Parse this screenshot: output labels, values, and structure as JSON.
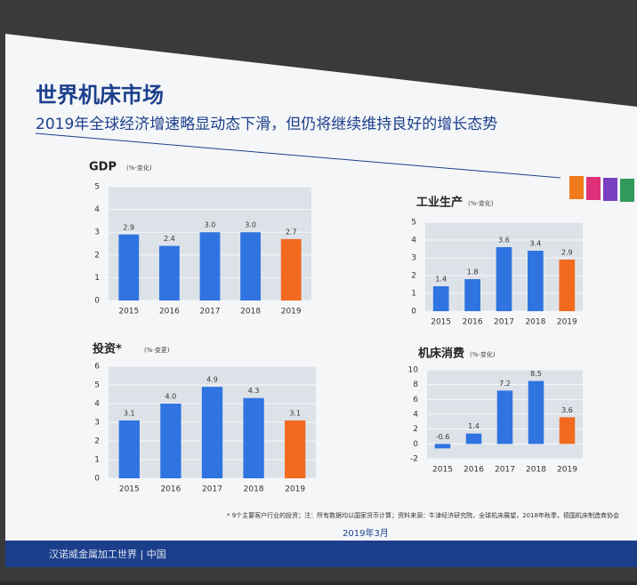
{
  "header": {
    "title": "世界机床市场",
    "subtitle": "2019年全球经济增速略显动态下滑，但仍将继续维持良好的增长态势"
  },
  "chart_data": [
    {
      "type": "bar",
      "title": "GDP",
      "unit": "(%-变化)",
      "categories": [
        "2015",
        "2016",
        "2017",
        "2018",
        "2019"
      ],
      "values": [
        2.9,
        2.4,
        3.0,
        3.0,
        2.7
      ],
      "value_labels": [
        "2.9",
        "2.4",
        "3.0",
        "3.0",
        "2.7"
      ],
      "colors": [
        "#2f74e0",
        "#2f74e0",
        "#2f74e0",
        "#2f74e0",
        "#f26a1f"
      ],
      "ylim": [
        0,
        5
      ],
      "yticks": [
        0,
        1,
        2,
        3,
        4,
        5
      ],
      "grid": true
    },
    {
      "type": "bar",
      "title": "工业生产",
      "unit": "(%-变化)",
      "categories": [
        "2015",
        "2016",
        "2017",
        "2018",
        "2019"
      ],
      "values": [
        1.4,
        1.8,
        3.6,
        3.4,
        2.9
      ],
      "colors": [
        "#2f74e0",
        "#2f74e0",
        "#2f74e0",
        "#2f74e0",
        "#f26a1f"
      ],
      "ylim": [
        0,
        5
      ],
      "yticks": [
        0,
        1,
        2,
        3,
        4,
        5
      ],
      "grid": true
    },
    {
      "type": "bar",
      "title": "投资*",
      "unit": "(%-变更)",
      "categories": [
        "2015",
        "2016",
        "2017",
        "2018",
        "2019"
      ],
      "values": [
        3.1,
        4.0,
        4.9,
        4.3,
        3.1
      ],
      "value_labels": [
        "3.1",
        "4.0",
        "4.9",
        "4.3",
        "3.1"
      ],
      "colors": [
        "#2f74e0",
        "#2f74e0",
        "#2f74e0",
        "#2f74e0",
        "#f26a1f"
      ],
      "ylim": [
        0,
        6
      ],
      "yticks": [
        0,
        1,
        2,
        3,
        4,
        5,
        6
      ],
      "grid": true
    },
    {
      "type": "bar",
      "title": "机床消费",
      "unit": "(%-变化)",
      "categories": [
        "2015",
        "2016",
        "2017",
        "2018",
        "2019"
      ],
      "values": [
        -0.6,
        1.4,
        7.2,
        8.5,
        3.6
      ],
      "colors": [
        "#2f74e0",
        "#2f74e0",
        "#2f74e0",
        "#2f74e0",
        "#f26a1f"
      ],
      "ylim": [
        -2,
        10
      ],
      "yticks": [
        -2,
        0,
        2,
        4,
        6,
        8,
        10
      ],
      "grid": true
    }
  ],
  "footnote": "* 9个主要客户行业的投资；注：所有数据均以国家货币计算；资料来源：牛津经济研究院，全球机床展望，2018年秋季，德国机床制造商协会",
  "date": "2019年3月",
  "footer": "汉诺威金属加工世界 | 中国"
}
